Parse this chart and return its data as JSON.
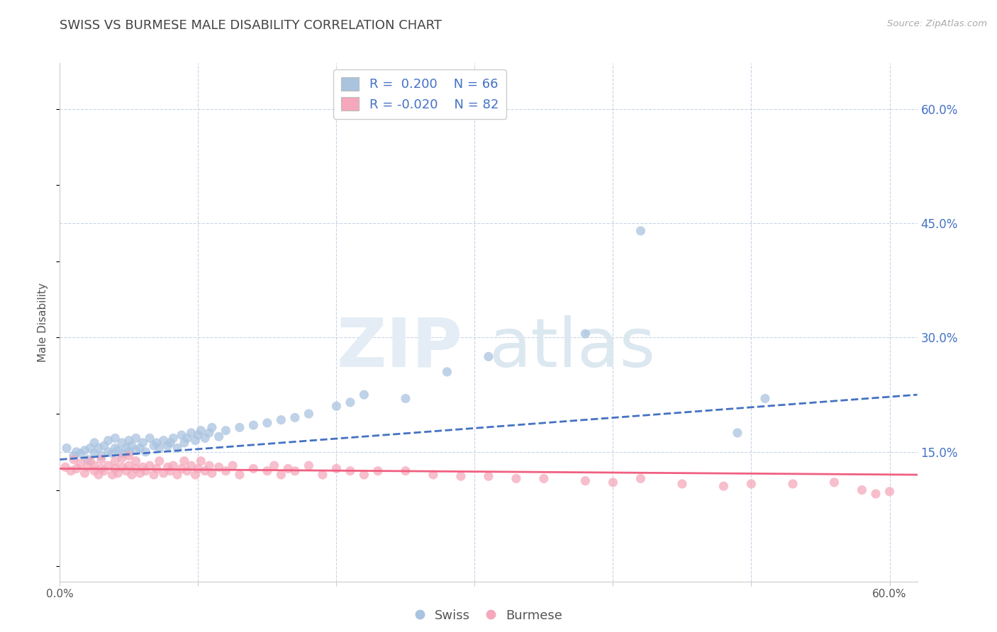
{
  "title": "SWISS VS BURMESE MALE DISABILITY CORRELATION CHART",
  "source": "Source: ZipAtlas.com",
  "ylabel": "Male Disability",
  "xlim": [
    0.0,
    0.62
  ],
  "ylim": [
    -0.02,
    0.66
  ],
  "yticks": [
    0.0,
    0.15,
    0.3,
    0.45,
    0.6
  ],
  "ytick_labels": [
    "",
    "15.0%",
    "30.0%",
    "45.0%",
    "60.0%"
  ],
  "xticks": [
    0.0,
    0.1,
    0.2,
    0.3,
    0.4,
    0.5,
    0.6
  ],
  "xtick_labels": [
    "0.0%",
    "",
    "",
    "",
    "",
    "",
    "60.0%"
  ],
  "swiss_R": 0.2,
  "swiss_N": 66,
  "burmese_R": -0.02,
  "burmese_N": 82,
  "swiss_color": "#aac4e0",
  "burmese_color": "#f5a8bc",
  "swiss_line_color": "#4472c4",
  "burmese_line_color": "#f06080",
  "grid_color": "#c8d4e8",
  "background_color": "#ffffff",
  "legend_color": "#4472c4",
  "title_color": "#444444",
  "swiss_scatter": {
    "x": [
      0.005,
      0.01,
      0.012,
      0.015,
      0.018,
      0.02,
      0.022,
      0.025,
      0.025,
      0.028,
      0.03,
      0.032,
      0.035,
      0.035,
      0.038,
      0.04,
      0.04,
      0.042,
      0.045,
      0.045,
      0.048,
      0.05,
      0.05,
      0.052,
      0.055,
      0.055,
      0.058,
      0.06,
      0.062,
      0.065,
      0.068,
      0.07,
      0.072,
      0.075,
      0.078,
      0.08,
      0.082,
      0.085,
      0.088,
      0.09,
      0.092,
      0.095,
      0.098,
      0.1,
      0.102,
      0.105,
      0.108,
      0.11,
      0.115,
      0.12,
      0.13,
      0.14,
      0.15,
      0.16,
      0.17,
      0.18,
      0.2,
      0.21,
      0.22,
      0.25,
      0.28,
      0.31,
      0.38,
      0.42,
      0.49,
      0.51
    ],
    "y": [
      0.155,
      0.145,
      0.15,
      0.148,
      0.152,
      0.14,
      0.155,
      0.148,
      0.162,
      0.155,
      0.145,
      0.158,
      0.15,
      0.165,
      0.148,
      0.155,
      0.168,
      0.152,
      0.148,
      0.162,
      0.155,
      0.15,
      0.165,
      0.158,
      0.152,
      0.168,
      0.155,
      0.162,
      0.15,
      0.168,
      0.158,
      0.162,
      0.155,
      0.165,
      0.158,
      0.162,
      0.168,
      0.155,
      0.172,
      0.162,
      0.168,
      0.175,
      0.165,
      0.172,
      0.178,
      0.168,
      0.175,
      0.182,
      0.17,
      0.178,
      0.182,
      0.185,
      0.188,
      0.192,
      0.195,
      0.2,
      0.21,
      0.215,
      0.225,
      0.22,
      0.255,
      0.275,
      0.305,
      0.44,
      0.175,
      0.22
    ]
  },
  "burmese_scatter": {
    "x": [
      0.004,
      0.008,
      0.01,
      0.012,
      0.015,
      0.018,
      0.02,
      0.022,
      0.025,
      0.025,
      0.028,
      0.03,
      0.03,
      0.032,
      0.035,
      0.038,
      0.04,
      0.04,
      0.042,
      0.045,
      0.045,
      0.048,
      0.05,
      0.05,
      0.052,
      0.055,
      0.055,
      0.058,
      0.06,
      0.062,
      0.065,
      0.068,
      0.07,
      0.072,
      0.075,
      0.078,
      0.08,
      0.082,
      0.085,
      0.088,
      0.09,
      0.092,
      0.095,
      0.098,
      0.1,
      0.102,
      0.105,
      0.108,
      0.11,
      0.115,
      0.12,
      0.125,
      0.13,
      0.14,
      0.15,
      0.155,
      0.16,
      0.165,
      0.17,
      0.18,
      0.19,
      0.2,
      0.21,
      0.22,
      0.23,
      0.25,
      0.27,
      0.29,
      0.31,
      0.33,
      0.35,
      0.38,
      0.4,
      0.42,
      0.45,
      0.48,
      0.5,
      0.53,
      0.56,
      0.58,
      0.59,
      0.6
    ],
    "y": [
      0.13,
      0.125,
      0.14,
      0.128,
      0.135,
      0.122,
      0.13,
      0.138,
      0.125,
      0.132,
      0.12,
      0.128,
      0.14,
      0.125,
      0.132,
      0.12,
      0.128,
      0.138,
      0.122,
      0.13,
      0.142,
      0.125,
      0.132,
      0.145,
      0.12,
      0.128,
      0.138,
      0.122,
      0.13,
      0.125,
      0.132,
      0.12,
      0.128,
      0.138,
      0.122,
      0.13,
      0.125,
      0.132,
      0.12,
      0.128,
      0.138,
      0.125,
      0.132,
      0.12,
      0.128,
      0.138,
      0.125,
      0.132,
      0.122,
      0.13,
      0.125,
      0.132,
      0.12,
      0.128,
      0.125,
      0.132,
      0.12,
      0.128,
      0.125,
      0.132,
      0.12,
      0.128,
      0.125,
      0.12,
      0.125,
      0.125,
      0.12,
      0.118,
      0.118,
      0.115,
      0.115,
      0.112,
      0.11,
      0.115,
      0.108,
      0.105,
      0.108,
      0.108,
      0.11,
      0.1,
      0.095,
      0.098
    ]
  }
}
